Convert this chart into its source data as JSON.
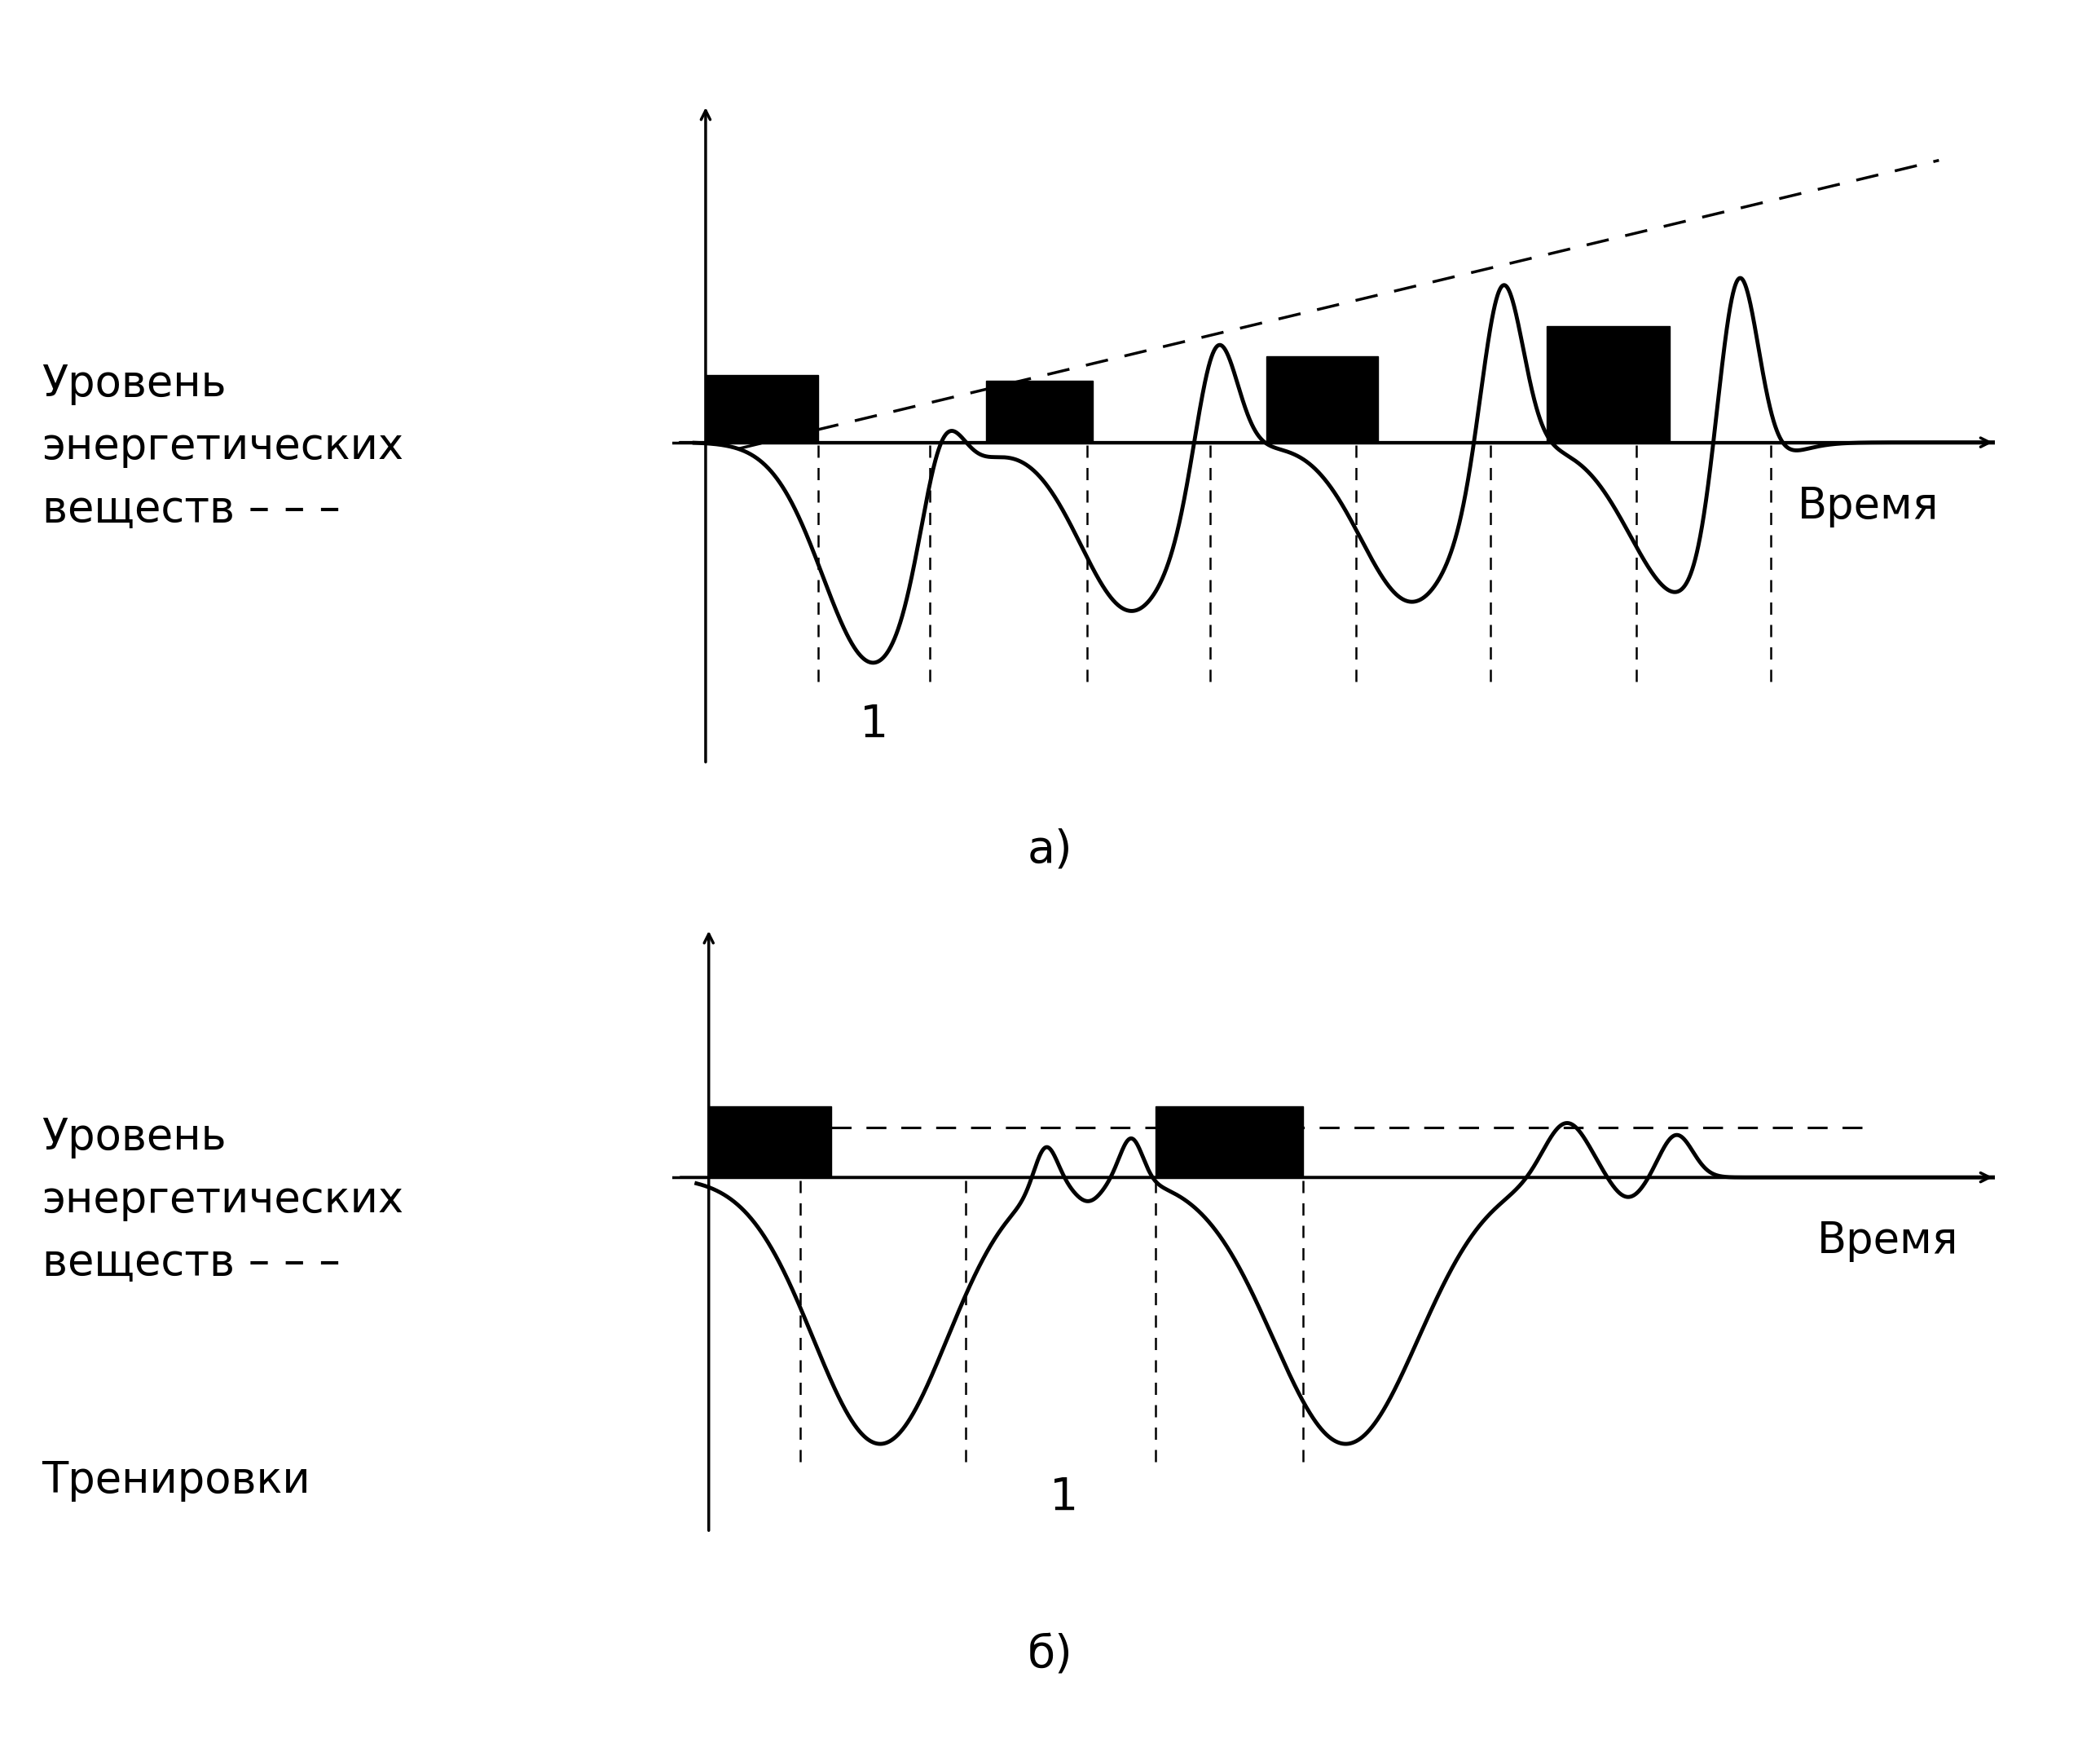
{
  "bg_color": "#ffffff",
  "text_color": "#000000",
  "ylabel_top": "Уровень\nэнергетических\nвеществ – – –",
  "ylabel_bot": "Уровень\nэнергетических\nвеществ – – –",
  "xlabel": "Время",
  "label_a": "а)",
  "label_b": "б)",
  "label_1": "1",
  "label_trenirovki": "Тренировки",
  "line_color": "#000000",
  "dashed_color": "#000000",
  "bar_color": "#000000",
  "font_size_label": 38,
  "font_size_letter": 40
}
